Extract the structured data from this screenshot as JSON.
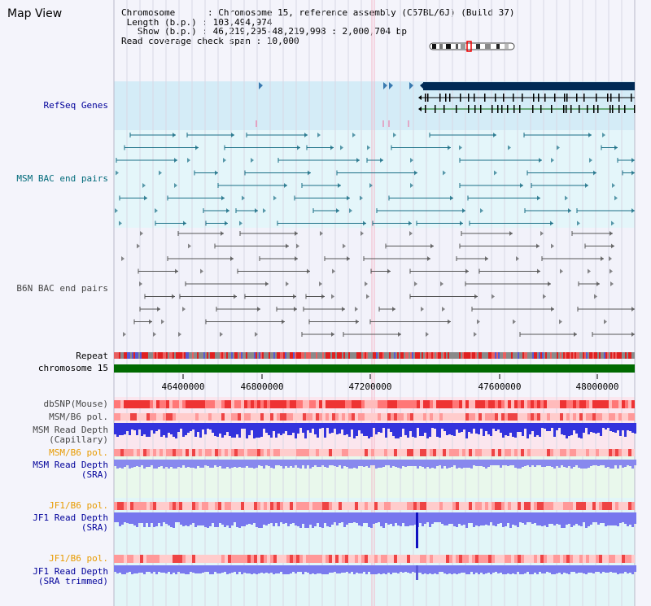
{
  "page": {
    "title": "Map View"
  },
  "info": {
    "chromosome_label": "Chromosome",
    "chromosome_value": "Chromosome 15, reference assembly (C57BL/6J) (Build 37)",
    "length_label": "Length (b.p.)",
    "length_value": "103,494,974",
    "show_label": "Show (b.p.)",
    "show_value": "46,219,295-48,219,998 : 2,000,704 bp",
    "coverage_label": "Read coverage check span",
    "coverage_value": "10,000"
  },
  "tracks": {
    "refseq": "RefSeq Genes",
    "msm_bac": "MSM BAC end pairs",
    "b6n_bac": "B6N BAC end pairs",
    "repeat": "Repeat",
    "chromosome": "chromosome 15",
    "dbsnp": "dbSNP(Mouse)",
    "msm_b6_pol_1": "MSM/B6 pol.",
    "msm_depth_cap_1": "MSM Read Depth",
    "msm_depth_cap_2": "(Capillary)",
    "msm_b6_pol_2": "MSM/B6 pol.",
    "msm_depth_sra_1": "MSM Read Depth",
    "msm_depth_sra_2": "(SRA)",
    "jf1_b6_pol_1": "JF1/B6 pol.",
    "jf1_depth_sra_1": "JF1 Read Depth",
    "jf1_depth_sra_2": "(SRA)",
    "jf1_b6_pol_2": "JF1/B6 pol.",
    "jf1_depth_trim_1": "JF1 Read Depth",
    "jf1_depth_trim_2": "(SRA trimmed)"
  },
  "axis": {
    "ticks": [
      "46400000",
      "46800000",
      "47200000",
      "47600000",
      "48000000"
    ]
  },
  "colors": {
    "refseq_label": "#00009a",
    "msm_label": "#006a7a",
    "b6n_label": "#444444",
    "orange_label": "#e89b00",
    "blue_label": "#00009a",
    "chromosome_bar": "#006a00",
    "gene_bar": "#002a55"
  }
}
